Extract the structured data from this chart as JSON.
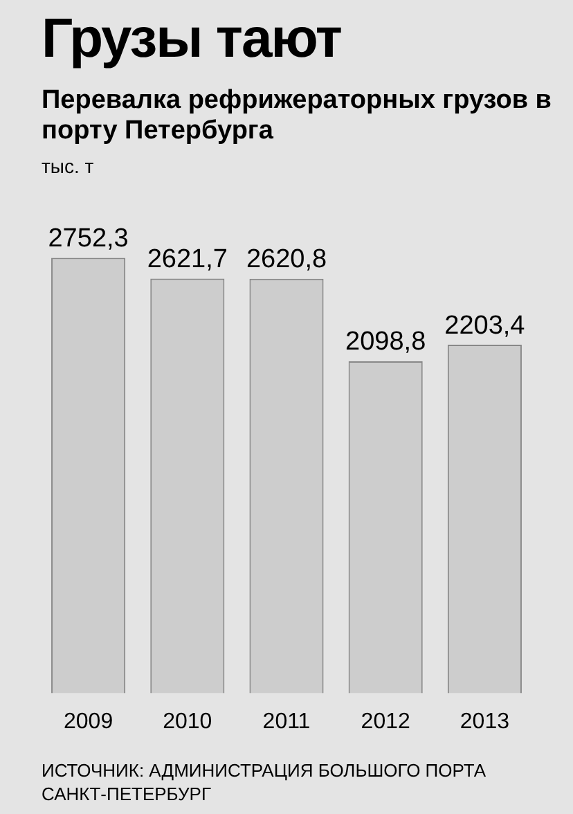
{
  "chart_data": {
    "type": "bar",
    "title": "Грузы тают",
    "subtitle": "Перевалка рефрижераторных грузов в порту Петербурга",
    "categories": [
      "2009",
      "2010",
      "2011",
      "2012",
      "2013"
    ],
    "values": [
      2752.3,
      2621.7,
      2620.8,
      2098.8,
      2203.4
    ],
    "value_labels": [
      "2752,3",
      "2621,7",
      "2620,8",
      "2098,8",
      "2203,4"
    ],
    "color": "#cdcdcd",
    "annotations": [
      "тыс. т",
      "ИСТОЧНИК: АДМИНИСТРАЦИЯ БОЛЬШОГО ПОРТА САНКТ-ПЕТЕРБУРГ"
    ]
  }
}
